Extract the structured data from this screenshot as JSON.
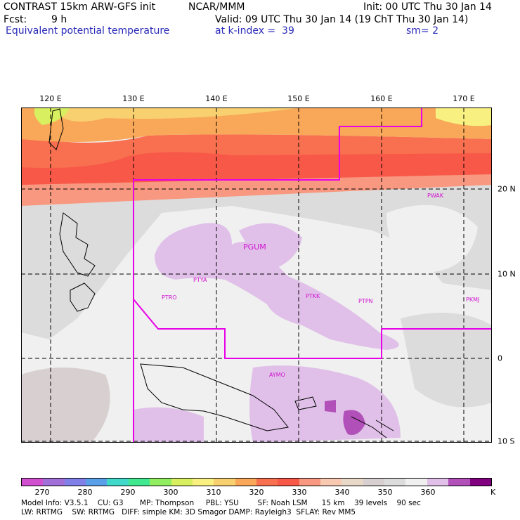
{
  "header": {
    "title": "CONTRAST 15km ARW-GFS init",
    "org": "NCAR/MMM",
    "init": "Init: 00 UTC Thu 30 Jan 14",
    "fcst_label": "Fcst:",
    "fcst_value": "9 h",
    "valid": "Valid: 09 UTC Thu 30 Jan 14 (19 ChT Thu 30 Jan 14)",
    "field": "Equivalent potential temperature",
    "level": "at k-index =  39",
    "smooth": "sm= 2"
  },
  "map": {
    "lon_labels": [
      "120 E",
      "130 E",
      "140 E",
      "150 E",
      "160 E",
      "170 E"
    ],
    "lat_labels": [
      "20 N",
      "10 N",
      "0",
      "10 S"
    ],
    "stations": [
      "PWAK",
      "PGUM",
      "PTYA",
      "PTRO",
      "PTKK",
      "PTPN",
      "PKMJ",
      "AYMO"
    ],
    "boundary_color": "#e800e8"
  },
  "colorbar": {
    "labels": [
      "270",
      "280",
      "290",
      "300",
      "310",
      "320",
      "330",
      "340",
      "350",
      "360"
    ],
    "unit": "K",
    "colors": [
      "#d050d0",
      "#a070d8",
      "#8080e8",
      "#5aa0e8",
      "#40d8c8",
      "#40e890",
      "#90ee60",
      "#d8f060",
      "#f8f080",
      "#f8d070",
      "#f8a858",
      "#f87050",
      "#f85848",
      "#f89880",
      "#f8c8b0",
      "#e8d8c8",
      "#d8d0d0",
      "#dcdcdc",
      "#f0f0f0",
      "#e0c0e8",
      "#b050b8",
      "#800080"
    ]
  },
  "footer": {
    "line1": "Model Info: V3.5.1    CU: G3       MP: Thompson     PBL: YSU        SF: Noah LSM      15 km    39 levels    90 sec",
    "line2": "LW: RRTMG    SW: RRTMG   DIFF: simple KM: 3D Smagor DAMP: Rayleigh3  SFLAY: Rev MM5"
  }
}
